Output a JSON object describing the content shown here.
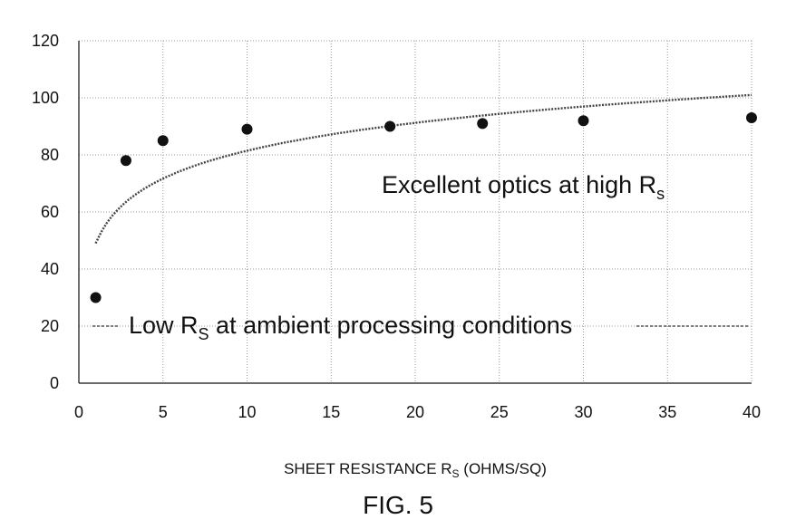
{
  "chart_data": {
    "type": "scatter",
    "xlim": [
      0,
      40
    ],
    "ylim": [
      0,
      120
    ],
    "x_ticks": [
      0,
      5,
      10,
      15,
      20,
      25,
      30,
      35,
      40
    ],
    "y_ticks": [
      0,
      20,
      40,
      60,
      80,
      100,
      120
    ],
    "grid": true,
    "series": [
      {
        "kind": "points",
        "x": [
          1,
          2.8,
          5,
          10,
          18.5,
          24,
          30,
          40
        ],
        "y": [
          30,
          78,
          85,
          89,
          90,
          91,
          92,
          93
        ]
      },
      {
        "kind": "trendline",
        "trend_type": "logarithmic",
        "x_range": [
          1,
          40
        ],
        "y_at_x_min": 49,
        "y_at_x_max": 101
      }
    ],
    "annotations": [
      {
        "text": "Excellent optics at high R",
        "subscript": "s"
      },
      {
        "text": "Low R",
        "subscript": "S",
        "text_after": " at ambient processing conditions"
      }
    ],
    "xlabel": {
      "text": "SHEET RESISTANCE R",
      "subscript": "S",
      "text_after": " (OHMS/SQ)"
    },
    "ylabel": ""
  },
  "caption": "FIG. 5",
  "colors": {
    "ink": "#111111",
    "grid": "#9a9a9a",
    "trend": "#444444"
  }
}
